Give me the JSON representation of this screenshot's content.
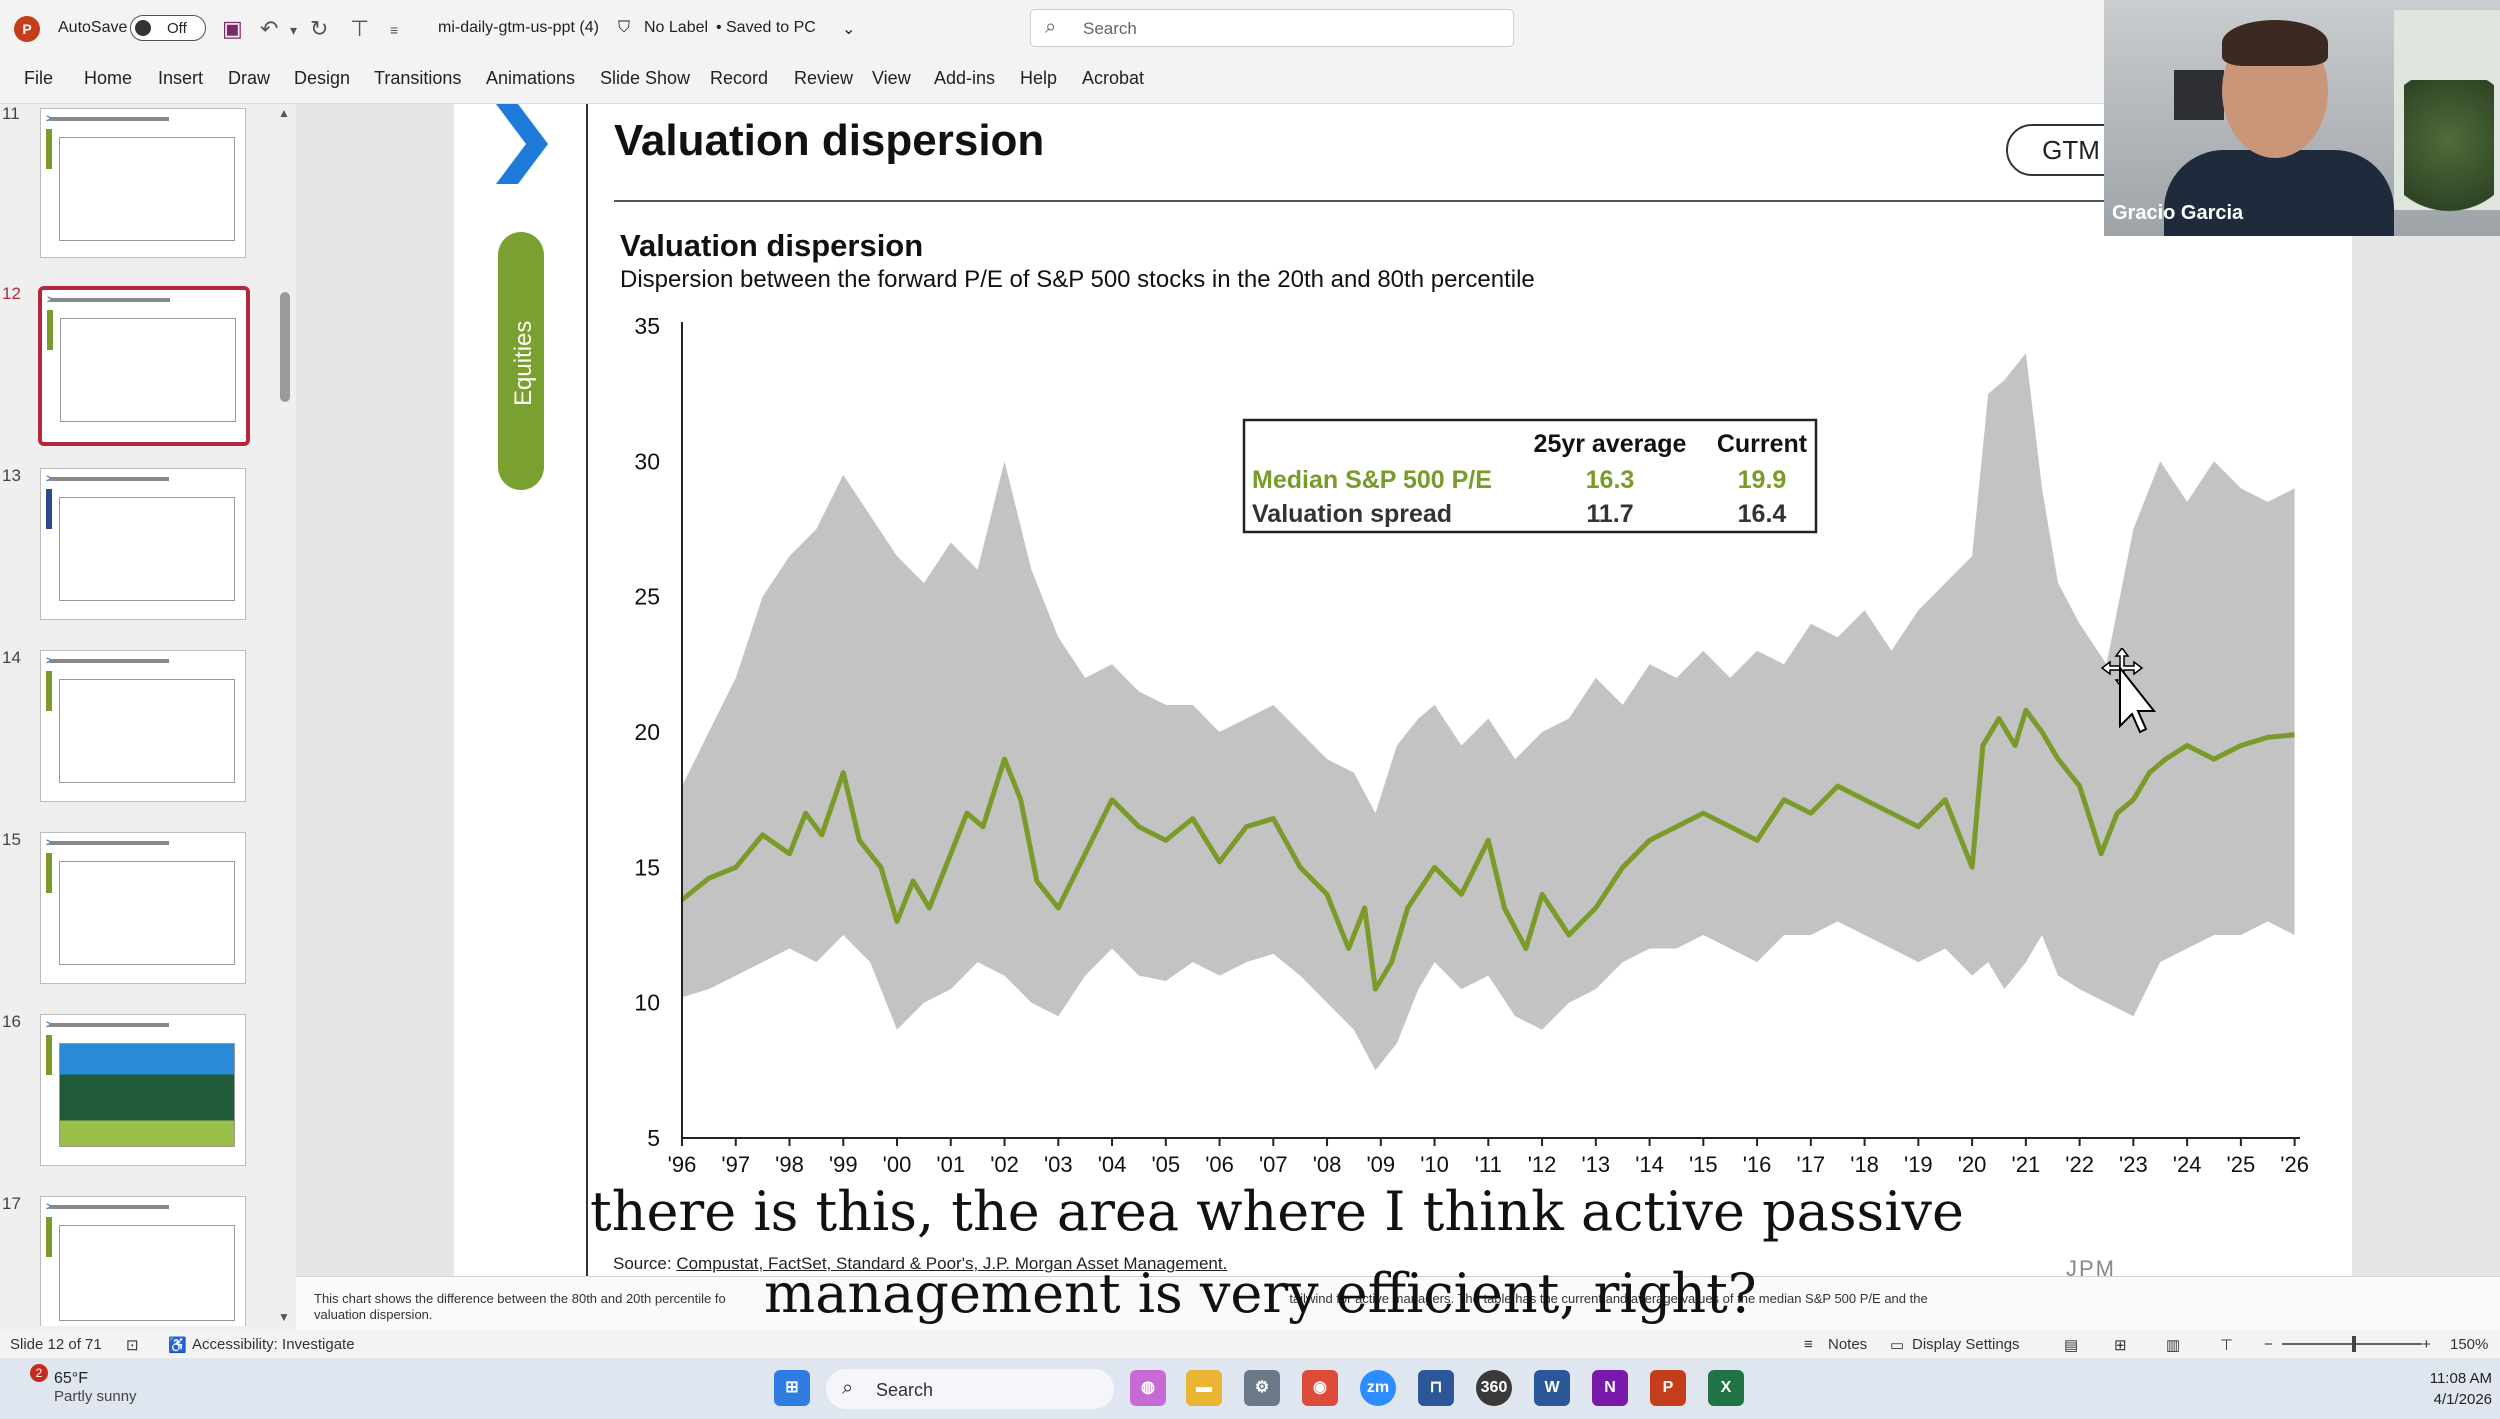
{
  "titlebar": {
    "autosave_label": "AutoSave",
    "autosave_state": "Off",
    "doc_title": "mi-daily-gtm-us-ppt (4)",
    "label_status": "No Label",
    "save_status": "Saved to PC",
    "search_placeholder": "Search"
  },
  "ribbon": {
    "tabs": [
      "File",
      "Home",
      "Insert",
      "Draw",
      "Design",
      "Transitions",
      "Animations",
      "Slide Show",
      "Record",
      "Review",
      "View",
      "Add-ins",
      "Help",
      "Acrobat"
    ]
  },
  "thumbnails": {
    "numbers": [
      "11",
      "12",
      "13",
      "14",
      "15",
      "16",
      "17"
    ],
    "active": "12"
  },
  "slide": {
    "title": "Valuation dispersion",
    "section": "Equities",
    "badge": "GTM",
    "chart_title": "Valuation dispersion",
    "chart_subtitle": "Dispersion between the forward P/E of S&P 500 stocks in the 20th and 80th percentile",
    "source_prefix": "Source:",
    "source_rest": "Compustat, FactSet, Standard & Poor's, J.P. Morgan Asset Management.",
    "logo_text": "JPM"
  },
  "chart_data": {
    "type": "area",
    "title": "Valuation dispersion",
    "subtitle": "Dispersion between the forward P/E of S&P 500 stocks in the 20th and 80th percentile",
    "ylim": [
      5,
      35
    ],
    "yticks": [
      5,
      10,
      15,
      20,
      25,
      30,
      35
    ],
    "xlim": [
      1996,
      2026.1
    ],
    "xtick_labels": [
      "'96",
      "'97",
      "'98",
      "'99",
      "'00",
      "'01",
      "'02",
      "'03",
      "'04",
      "'05",
      "'06",
      "'07",
      "'08",
      "'09",
      "'10",
      "'11",
      "'12",
      "'13",
      "'14",
      "'15",
      "'16",
      "'17",
      "'18",
      "'19",
      "'20",
      "'21",
      "'22",
      "'23",
      "'24",
      "'25",
      "'26"
    ],
    "grid": false,
    "colors": {
      "band": "#c3c3c3",
      "median": "#7a9a2a"
    },
    "series": [
      {
        "name": "Median S&P 500 P/E",
        "x": [
          1996.0,
          1996.5,
          1997.0,
          1997.5,
          1998.0,
          1998.3,
          1998.6,
          1999.0,
          1999.3,
          1999.7,
          2000.0,
          2000.3,
          2000.6,
          2001.0,
          2001.3,
          2001.6,
          2002.0,
          2002.3,
          2002.6,
          2003.0,
          2003.5,
          2004.0,
          2004.5,
          2005.0,
          2005.5,
          2006.0,
          2006.5,
          2007.0,
          2007.5,
          2008.0,
          2008.4,
          2008.7,
          2008.9,
          2009.2,
          2009.5,
          2010.0,
          2010.5,
          2011.0,
          2011.3,
          2011.7,
          2012.0,
          2012.5,
          2013.0,
          2013.5,
          2014.0,
          2014.5,
          2015.0,
          2015.5,
          2016.0,
          2016.5,
          2017.0,
          2017.5,
          2018.0,
          2018.5,
          2019.0,
          2019.5,
          2020.0,
          2020.2,
          2020.5,
          2020.8,
          2021.0,
          2021.3,
          2021.6,
          2022.0,
          2022.4,
          2022.7,
          2023.0,
          2023.3,
          2023.6,
          2024.0,
          2024.5,
          2025.0,
          2025.5,
          2026.0
        ],
        "values": [
          13.8,
          14.6,
          15.0,
          16.2,
          15.5,
          17.0,
          16.2,
          18.5,
          16.0,
          15.0,
          13.0,
          14.5,
          13.5,
          15.5,
          17.0,
          16.5,
          19.0,
          17.5,
          14.5,
          13.5,
          15.5,
          17.5,
          16.5,
          16.0,
          16.8,
          15.2,
          16.5,
          16.8,
          15.0,
          14.0,
          12.0,
          13.5,
          10.5,
          11.5,
          13.5,
          15.0,
          14.0,
          16.0,
          13.5,
          12.0,
          14.0,
          12.5,
          13.5,
          15.0,
          16.0,
          16.5,
          17.0,
          16.5,
          16.0,
          17.5,
          17.0,
          18.0,
          17.5,
          17.0,
          16.5,
          17.5,
          15.0,
          19.5,
          20.5,
          19.5,
          20.8,
          20.0,
          19.0,
          18.0,
          15.5,
          17.0,
          17.5,
          18.5,
          19.0,
          19.5,
          19.0,
          19.5,
          19.8,
          19.9
        ]
      },
      {
        "name": "Valuation spread",
        "x": [
          1996.0,
          1996.5,
          1997.0,
          1997.5,
          1998.0,
          1998.5,
          1999.0,
          1999.5,
          2000.0,
          2000.5,
          2001.0,
          2001.5,
          2002.0,
          2002.5,
          2003.0,
          2003.5,
          2004.0,
          2004.5,
          2005.0,
          2005.5,
          2006.0,
          2006.5,
          2007.0,
          2007.5,
          2008.0,
          2008.5,
          2008.9,
          2009.3,
          2009.7,
          2010.0,
          2010.5,
          2011.0,
          2011.5,
          2012.0,
          2012.5,
          2013.0,
          2013.5,
          2014.0,
          2014.5,
          2015.0,
          2015.5,
          2016.0,
          2016.5,
          2017.0,
          2017.5,
          2018.0,
          2018.5,
          2019.0,
          2019.5,
          2020.0,
          2020.3,
          2020.6,
          2021.0,
          2021.3,
          2021.6,
          2022.0,
          2022.5,
          2023.0,
          2023.5,
          2024.0,
          2024.5,
          2025.0,
          2025.5,
          2026.0
        ],
        "low": [
          10.2,
          10.5,
          11.0,
          11.5,
          12.0,
          11.5,
          12.5,
          11.5,
          9.0,
          10.0,
          10.5,
          11.5,
          11.0,
          10.0,
          9.5,
          11.0,
          12.0,
          11.0,
          10.8,
          11.5,
          11.0,
          11.5,
          11.8,
          11.0,
          10.0,
          9.0,
          7.5,
          8.5,
          10.5,
          11.5,
          10.5,
          11.0,
          9.5,
          9.0,
          10.0,
          10.5,
          11.5,
          12.0,
          12.0,
          12.5,
          12.0,
          11.5,
          12.5,
          12.5,
          13.0,
          12.5,
          12.0,
          11.5,
          12.0,
          11.0,
          11.5,
          10.5,
          11.5,
          12.5,
          11.0,
          10.5,
          10.0,
          9.5,
          11.5,
          12.0,
          12.5,
          12.5,
          13.0,
          12.5
        ],
        "high": [
          18.0,
          20.0,
          22.0,
          25.0,
          26.5,
          27.5,
          29.5,
          28.0,
          26.5,
          25.5,
          27.0,
          26.0,
          30.0,
          26.0,
          23.5,
          22.0,
          22.5,
          21.5,
          21.0,
          21.0,
          20.0,
          20.5,
          21.0,
          20.0,
          19.0,
          18.5,
          17.0,
          19.5,
          20.5,
          21.0,
          19.5,
          20.5,
          19.0,
          20.0,
          20.5,
          22.0,
          21.0,
          22.5,
          22.0,
          23.0,
          22.0,
          23.0,
          22.5,
          24.0,
          23.5,
          24.5,
          23.0,
          24.5,
          25.5,
          26.5,
          32.5,
          33.0,
          34.0,
          29.0,
          25.5,
          24.0,
          22.5,
          27.5,
          30.0,
          28.5,
          30.0,
          29.0,
          28.5,
          29.0
        ]
      }
    ],
    "table": {
      "headers": [
        "",
        "25yr average",
        "Current"
      ],
      "rows": [
        {
          "label": "Median S&P 500 P/E",
          "avg": "16.3",
          "current": "19.9"
        },
        {
          "label": "Valuation spread",
          "avg": "11.7",
          "current": "16.4"
        }
      ]
    }
  },
  "notes": {
    "left": "This chart shows the difference between the 80th and 20th percentile fo",
    "right": "tailwind for active managers. The table has the current and average values of the median S&P 500 P/E and the",
    "line2": "valuation dispersion."
  },
  "statusbar": {
    "slide_info": "Slide 12 of 71",
    "accessibility": "Accessibility: Investigate",
    "notes": "Notes",
    "display_settings": "Display Settings",
    "zoom": "150%"
  },
  "captions": {
    "line1": "there is this, the area where I think active passive",
    "line2": "management is very efficient, right?"
  },
  "taskbar": {
    "weather_temp": "65°F",
    "weather_cond": "Partly sunny",
    "weather_badge": "2",
    "search": "Search",
    "time": "11:08 AM",
    "date": "4/1/2026"
  },
  "webcam": {
    "name": "Gracio Garcia"
  }
}
